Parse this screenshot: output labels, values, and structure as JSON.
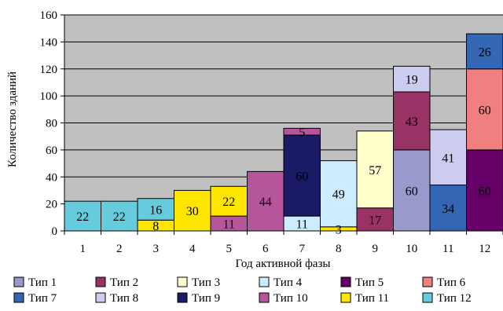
{
  "chart_data": {
    "type": "bar",
    "stacked": true,
    "categories": [
      "1",
      "2",
      "3",
      "4",
      "5",
      "6",
      "7",
      "8",
      "9",
      "10",
      "11",
      "12"
    ],
    "xlabel": "Год активной фазы",
    "ylabel": "Количество зданий",
    "ylim": [
      0,
      160
    ],
    "yticks": [
      0,
      20,
      40,
      60,
      80,
      100,
      120,
      140,
      160
    ],
    "grid": true,
    "plot_background": "#c0c0c0",
    "legend_position": "bottom",
    "series": [
      {
        "name": "Тип 1",
        "color": "#9999cc",
        "values": [
          0,
          0,
          0,
          0,
          0,
          0,
          0,
          0,
          0,
          60,
          0,
          0
        ]
      },
      {
        "name": "Тип 2",
        "color": "#993366",
        "values": [
          0,
          0,
          0,
          0,
          0,
          0,
          0,
          0,
          17,
          43,
          0,
          0
        ]
      },
      {
        "name": "Тип 3",
        "color": "#ffffcc",
        "values": [
          0,
          0,
          0,
          0,
          0,
          0,
          0,
          0,
          57,
          0,
          0,
          0
        ]
      },
      {
        "name": "Тип 4",
        "color": "#ccecff",
        "values": [
          0,
          0,
          0,
          0,
          0,
          0,
          11,
          49,
          0,
          0,
          0,
          0
        ]
      },
      {
        "name": "Тип 5",
        "color": "#660066",
        "values": [
          0,
          0,
          0,
          0,
          0,
          0,
          0,
          0,
          0,
          0,
          0,
          60
        ]
      },
      {
        "name": "Тип 6",
        "color": "#f08080",
        "values": [
          0,
          0,
          0,
          0,
          0,
          0,
          0,
          0,
          0,
          0,
          0,
          60
        ]
      },
      {
        "name": "Тип 7",
        "color": "#3366b3",
        "values": [
          0,
          0,
          0,
          0,
          0,
          0,
          0,
          0,
          0,
          0,
          34,
          26
        ]
      },
      {
        "name": "Тип 8",
        "color": "#ccccee",
        "values": [
          0,
          0,
          0,
          0,
          0,
          0,
          0,
          0,
          0,
          19,
          41,
          0
        ]
      },
      {
        "name": "Тип 9",
        "color": "#1a1a66",
        "values": [
          0,
          0,
          0,
          0,
          0,
          0,
          60,
          0,
          0,
          0,
          0,
          0
        ]
      },
      {
        "name": "Тип 10",
        "color": "#b5559a",
        "values": [
          0,
          0,
          0,
          0,
          11,
          44,
          5,
          0,
          0,
          0,
          0,
          0
        ]
      },
      {
        "name": "Тип 11",
        "color": "#ffe600",
        "values": [
          0,
          0,
          8,
          30,
          22,
          0,
          0,
          3,
          0,
          0,
          0,
          0
        ]
      },
      {
        "name": "Тип 12",
        "color": "#66ccdd",
        "values": [
          22,
          22,
          16,
          0,
          0,
          0,
          0,
          0,
          0,
          0,
          0,
          0
        ]
      }
    ],
    "stacks": [
      [
        {
          "s": 11,
          "v": 22
        }
      ],
      [
        {
          "s": 11,
          "v": 22
        }
      ],
      [
        {
          "s": 10,
          "v": 8
        },
        {
          "s": 11,
          "v": 16
        }
      ],
      [
        {
          "s": 10,
          "v": 30
        }
      ],
      [
        {
          "s": 9,
          "v": 11
        },
        {
          "s": 10,
          "v": 22
        }
      ],
      [
        {
          "s": 9,
          "v": 44
        }
      ],
      [
        {
          "s": 3,
          "v": 11
        },
        {
          "s": 8,
          "v": 60
        },
        {
          "s": 9,
          "v": 5
        }
      ],
      [
        {
          "s": 10,
          "v": 3
        },
        {
          "s": 3,
          "v": 49
        }
      ],
      [
        {
          "s": 1,
          "v": 17
        },
        {
          "s": 2,
          "v": 57
        }
      ],
      [
        {
          "s": 0,
          "v": 60
        },
        {
          "s": 1,
          "v": 43
        },
        {
          "s": 7,
          "v": 19
        }
      ],
      [
        {
          "s": 6,
          "v": 34
        },
        {
          "s": 7,
          "v": 41
        }
      ],
      [
        {
          "s": 4,
          "v": 60
        },
        {
          "s": 5,
          "v": 60
        },
        {
          "s": 6,
          "v": 26
        }
      ]
    ]
  }
}
